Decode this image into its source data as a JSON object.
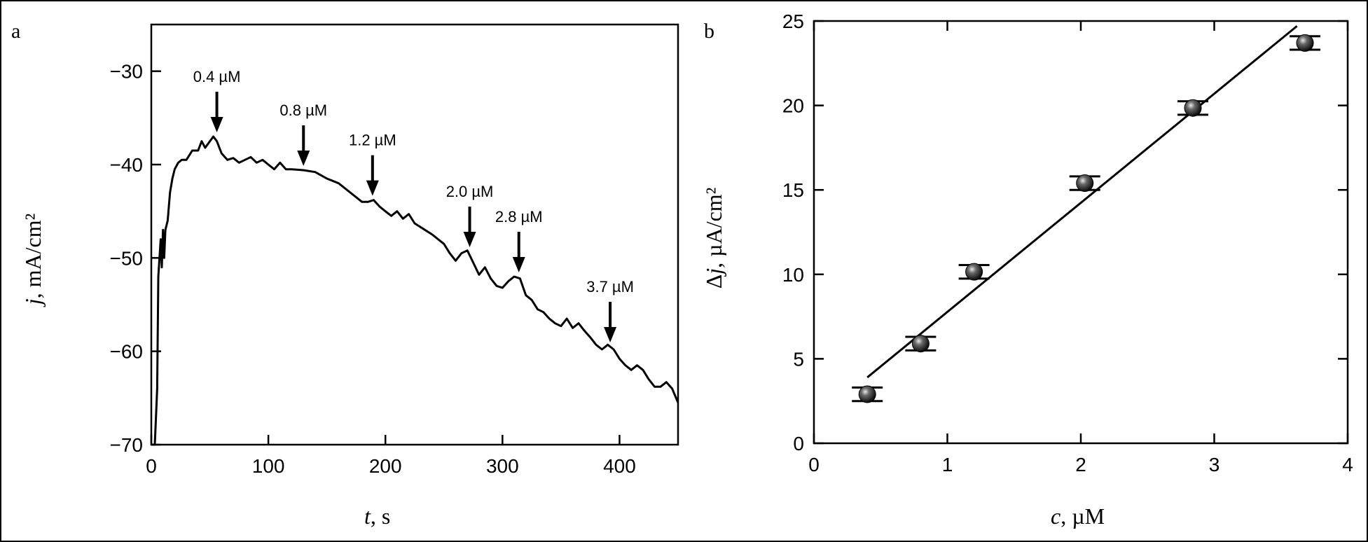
{
  "figure": {
    "border_color": "#000000"
  },
  "chart_data": [
    {
      "panel_label": "a",
      "type": "line",
      "title": "",
      "xlabel_italic": "t",
      "xlabel_rest": ", s",
      "ylabel_italic": "j",
      "ylabel_rest": ", mA/cm²",
      "xlim": [
        0,
        450
      ],
      "ylim": [
        -70,
        -25
      ],
      "xticks": [
        0,
        100,
        200,
        300,
        400
      ],
      "yticks": [
        -30,
        -40,
        -50,
        -60,
        -70
      ],
      "xtick_labels": [
        "0",
        "100",
        "200",
        "300",
        "400"
      ],
      "ytick_labels": [
        "−30",
        "−40",
        "−50",
        "−60",
        "−70"
      ],
      "grid": false,
      "line_color": "#000000",
      "x": [
        0,
        3,
        5,
        6,
        8,
        9,
        10,
        11,
        12,
        14,
        16,
        18,
        20,
        23,
        26,
        30,
        35,
        40,
        43,
        46,
        50,
        53,
        56,
        60,
        65,
        70,
        75,
        80,
        85,
        90,
        95,
        100,
        105,
        110,
        115,
        120,
        130,
        140,
        150,
        160,
        170,
        180,
        185,
        190,
        195,
        200,
        205,
        210,
        215,
        220,
        225,
        230,
        240,
        250,
        255,
        260,
        265,
        270,
        275,
        280,
        285,
        290,
        295,
        300,
        305,
        310,
        315,
        320,
        325,
        330,
        335,
        340,
        345,
        350,
        355,
        360,
        365,
        370,
        375,
        380,
        385,
        390,
        395,
        400,
        405,
        410,
        415,
        420,
        425,
        430,
        435,
        440,
        445,
        450
      ],
      "y": [
        -70,
        -70,
        -64,
        -52,
        -48,
        -51,
        -47,
        -50,
        -47,
        -46,
        -43,
        -41.5,
        -40.5,
        -39.8,
        -39.5,
        -39.5,
        -38.5,
        -38.5,
        -37.5,
        -38.2,
        -37.5,
        -37,
        -37.5,
        -38.8,
        -39.5,
        -39.3,
        -39.8,
        -39.5,
        -39.2,
        -39.8,
        -39.5,
        -40,
        -40.5,
        -39.8,
        -40.5,
        -40.5,
        -40.6,
        -40.8,
        -41.5,
        -42,
        -43,
        -44,
        -44,
        -43.8,
        -44.5,
        -45,
        -45.5,
        -45,
        -45.8,
        -45.3,
        -46.3,
        -46.7,
        -47.5,
        -48.5,
        -49.5,
        -50.3,
        -49.5,
        -49.2,
        -50.5,
        -51.8,
        -51,
        -52.2,
        -53,
        -53.2,
        -52.5,
        -52,
        -52.2,
        -54,
        -54.5,
        -55.5,
        -55.8,
        -56.5,
        -57,
        -57.3,
        -56.5,
        -57.5,
        -57,
        -57.8,
        -58.5,
        -59.3,
        -59.8,
        -59.3,
        -59.8,
        -60.8,
        -61.5,
        -62,
        -61.5,
        -62,
        -63,
        -63.8,
        -63.8,
        -63.3,
        -64,
        -65.5
      ],
      "annotations": [
        {
          "label": "0.4 µM",
          "x": 56,
          "y_tip": -37
        },
        {
          "label": "0.8 µM",
          "x": 130,
          "y_tip": -40.6
        },
        {
          "label": "1.2 µM",
          "x": 189,
          "y_tip": -43.8
        },
        {
          "label": "2.0 µM",
          "x": 272,
          "y_tip": -49.3
        },
        {
          "label": "2.8 µM",
          "x": 314,
          "y_tip": -52
        },
        {
          "label": "3.7 µM",
          "x": 392,
          "y_tip": -59.5
        }
      ]
    },
    {
      "panel_label": "b",
      "type": "scatter",
      "title": "",
      "xlabel_italic": "c",
      "xlabel_rest": ", µM",
      "ylabel_prefix": "Δ",
      "ylabel_italic": "j",
      "ylabel_rest": ", µA/cm²",
      "xlim": [
        0,
        4
      ],
      "ylim": [
        0,
        25
      ],
      "xticks": [
        0,
        1,
        2,
        3,
        4
      ],
      "yticks": [
        0,
        5,
        10,
        15,
        20,
        25
      ],
      "xtick_labels": [
        "0",
        "1",
        "2",
        "3",
        "4"
      ],
      "ytick_labels": [
        "0",
        "5",
        "10",
        "15",
        "20",
        "25"
      ],
      "grid": false,
      "marker_color": "#1a1a1a",
      "points": [
        {
          "x": 0.4,
          "y": 2.9,
          "err": 0.4
        },
        {
          "x": 0.8,
          "y": 5.9,
          "err": 0.4
        },
        {
          "x": 1.2,
          "y": 10.15,
          "err": 0.4
        },
        {
          "x": 2.03,
          "y": 15.4,
          "err": 0.4
        },
        {
          "x": 2.84,
          "y": 19.85,
          "err": 0.4
        },
        {
          "x": 3.68,
          "y": 23.7,
          "err": 0.4
        }
      ],
      "fit_line": {
        "x": [
          0.4,
          3.62
        ],
        "y": [
          3.9,
          24.7
        ]
      }
    }
  ]
}
